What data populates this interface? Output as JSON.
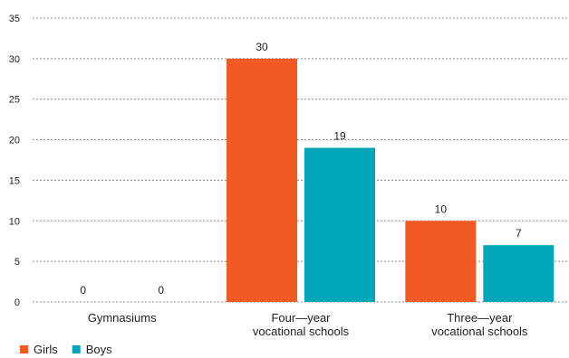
{
  "chart_data": {
    "type": "bar",
    "categories": [
      [
        "Gymnasiums"
      ],
      [
        "Four—year",
        "vocational schools"
      ],
      [
        "Three—year",
        "vocational schools"
      ]
    ],
    "series": [
      {
        "name": "Girls",
        "values": [
          0,
          30,
          10
        ],
        "color": "#f15a22"
      },
      {
        "name": "Boys",
        "values": [
          0,
          19,
          7
        ],
        "color": "#00a6b8"
      }
    ],
    "yticks": [
      "0",
      "5",
      "10",
      "15",
      "20",
      "25",
      "30",
      "35"
    ],
    "ylim": [
      0,
      35
    ],
    "grid": true,
    "grid_style": "dashed",
    "legend_position": "bottom-left"
  }
}
